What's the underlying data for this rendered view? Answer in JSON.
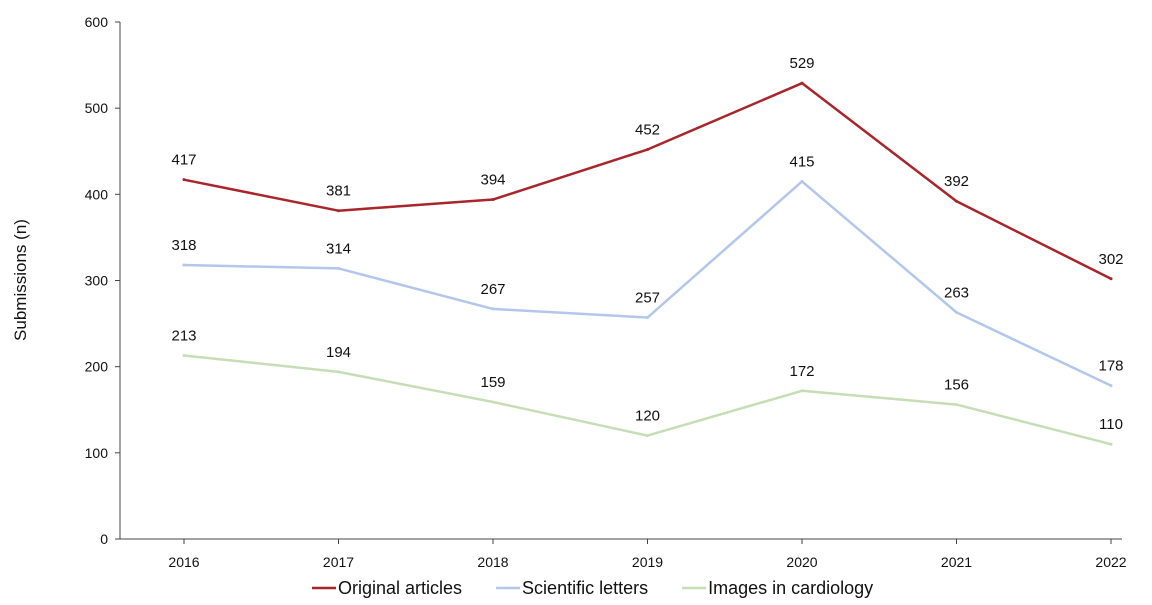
{
  "chart_data": {
    "type": "line",
    "title": "",
    "xlabel": "",
    "ylabel": "Submissions (n)",
    "x": [
      "2016",
      "2017",
      "2018",
      "2019",
      "2020",
      "2021",
      "2022"
    ],
    "ylim": [
      0,
      600
    ],
    "yticks": [
      0,
      100,
      200,
      300,
      400,
      500,
      600
    ],
    "grid": false,
    "legend_position": "bottom",
    "series": [
      {
        "name": "Original articles",
        "color": "#a8262b",
        "values": [
          417,
          381,
          394,
          452,
          529,
          392,
          302
        ]
      },
      {
        "name": "Scientific letters",
        "color": "#b3c7ec",
        "values": [
          318,
          314,
          267,
          257,
          415,
          263,
          178
        ]
      },
      {
        "name": "Images in cardiology",
        "color": "#c6ddb5",
        "values": [
          213,
          194,
          159,
          120,
          172,
          156,
          110
        ]
      }
    ]
  }
}
